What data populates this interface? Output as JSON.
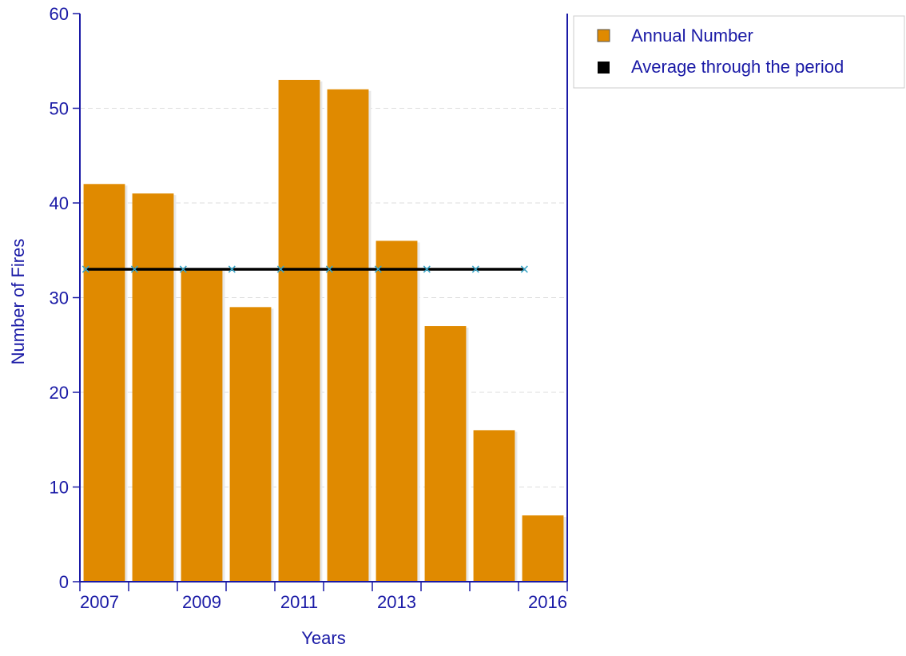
{
  "chart_data": {
    "type": "bar",
    "categories": [
      "2007",
      "2008",
      "2009",
      "2010",
      "2011",
      "2012",
      "2013",
      "2014",
      "2015",
      "2016"
    ],
    "x_tick_labels": [
      "2007",
      "",
      "2009",
      "",
      "2011",
      "",
      "2013",
      "",
      "",
      "2016"
    ],
    "series": [
      {
        "name": "Annual Number",
        "type": "bar",
        "values": [
          42,
          41,
          33,
          29,
          53,
          52,
          36,
          27,
          16,
          7
        ]
      },
      {
        "name": "Average through the period",
        "type": "line",
        "values": [
          33,
          33,
          33,
          33,
          33,
          33,
          33,
          33,
          33,
          33
        ]
      }
    ],
    "xlabel": "Years",
    "ylabel": "Number of Fires",
    "ylim": [
      0,
      60
    ],
    "yticks": [
      0,
      10,
      20,
      30,
      40,
      50,
      60
    ],
    "grid": true,
    "legend_position": "top-right",
    "colors": {
      "bar": "#e08a00",
      "average_line": "#000000",
      "average_markers": "#3aa6c8",
      "axis": "#1a1aa6",
      "grid": "#dddddd"
    }
  }
}
